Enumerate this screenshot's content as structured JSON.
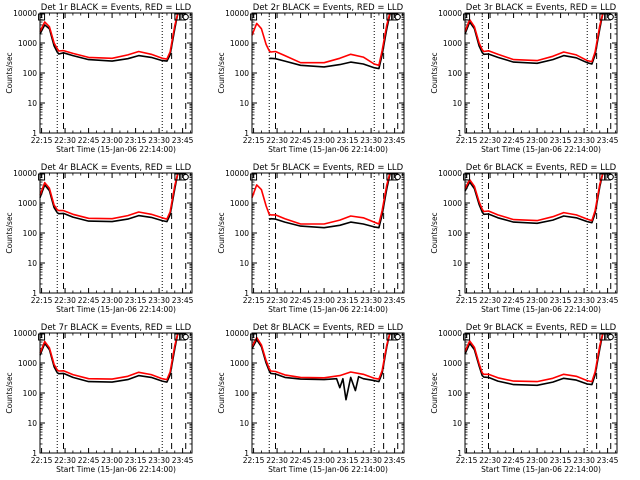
{
  "chart_data": [
    {
      "type": "line",
      "title": "Det 1r BLACK = Events, RED = LLD",
      "xlabel": "Start Time (15-Jan-06 22:14:00)",
      "ylabel": "Counts/sec",
      "x_ticks": [
        "22:15",
        "22:30",
        "22:45",
        "23:00",
        "23:15",
        "23:30",
        "23:45"
      ],
      "y_ticks": [
        "1",
        "10",
        "100",
        "1000",
        "10000"
      ],
      "y_scale": "log",
      "xlim": [
        "22:14",
        "23:51"
      ],
      "ylim": [
        1,
        10000
      ],
      "series": [
        {
          "color": "#000000",
          "x": [
            "22:14",
            "22:17",
            "22:20",
            "22:23",
            "22:25",
            "22:26",
            "22:29",
            "22:35",
            "22:45",
            "23:00",
            "23:10",
            "23:17",
            "23:25",
            "23:32",
            "23:35",
            "23:37",
            "23:40",
            "23:42"
          ],
          "y": [
            2000,
            4000,
            3000,
            800,
            500,
            430,
            470,
            380,
            280,
            250,
            300,
            380,
            330,
            260,
            250,
            400,
            3000,
            10000
          ]
        },
        {
          "color": "#ff0000",
          "x": [
            "22:14",
            "22:17",
            "22:20",
            "22:23",
            "22:25",
            "22:26",
            "22:29",
            "22:35",
            "22:45",
            "23:00",
            "23:10",
            "23:17",
            "23:25",
            "23:32",
            "23:35",
            "23:37",
            "23:40",
            "23:42"
          ],
          "y": [
            2400,
            5000,
            3500,
            1000,
            650,
            540,
            560,
            450,
            330,
            310,
            400,
            520,
            420,
            310,
            290,
            500,
            3800,
            10000
          ]
        }
      ]
    },
    {
      "type": "line",
      "title": "Det 2r BLACK = Events, RED = LLD",
      "xlabel": "Start Time (15-Jan-06 22:14:00)",
      "ylabel": "Counts/sec",
      "x_ticks": [
        "22:15",
        "22:30",
        "22:45",
        "23:00",
        "23:15",
        "23:30",
        "23:45"
      ],
      "y_ticks": [
        "1",
        "10",
        "100",
        "1000",
        "10000"
      ],
      "y_scale": "log",
      "xlim": [
        "22:14",
        "23:51"
      ],
      "ylim": [
        1,
        10000
      ],
      "series": [
        {
          "color": "#000000",
          "x": [
            "22:25",
            "22:26",
            "22:29",
            "22:35",
            "22:45",
            "23:00",
            "23:10",
            "23:17",
            "23:25",
            "23:32",
            "23:35",
            "23:37",
            "23:40",
            "23:42"
          ],
          "y": [
            300,
            310,
            300,
            250,
            180,
            160,
            190,
            230,
            200,
            150,
            140,
            400,
            3000,
            9000
          ]
        },
        {
          "color": "#ff0000",
          "x": [
            "22:14",
            "22:17",
            "22:20",
            "22:23",
            "22:25",
            "22:26",
            "22:29",
            "22:35",
            "22:45",
            "23:00",
            "23:10",
            "23:17",
            "23:25",
            "23:32",
            "23:35",
            "23:37",
            "23:40",
            "23:42"
          ],
          "y": [
            1800,
            4500,
            3000,
            900,
            550,
            500,
            520,
            380,
            220,
            220,
            310,
            420,
            340,
            200,
            180,
            550,
            4000,
            10000
          ]
        }
      ]
    },
    {
      "type": "line",
      "title": "Det 3r BLACK = Events, RED = LLD",
      "xlabel": "Start Time (15-Jan-06 22:14:00)",
      "ylabel": "Counts/sec",
      "x_ticks": [
        "22:15",
        "22:30",
        "22:45",
        "23:00",
        "23:15",
        "23:30",
        "23:45"
      ],
      "y_ticks": [
        "1",
        "10",
        "100",
        "1000",
        "10000"
      ],
      "y_scale": "log",
      "xlim": [
        "22:14",
        "23:51"
      ],
      "ylim": [
        1,
        10000
      ],
      "series": [
        {
          "color": "#000000",
          "x": [
            "22:14",
            "22:17",
            "22:20",
            "22:23",
            "22:25",
            "22:26",
            "22:29",
            "22:35",
            "22:45",
            "23:00",
            "23:10",
            "23:17",
            "23:25",
            "23:32",
            "23:35",
            "23:37",
            "23:40",
            "23:42"
          ],
          "y": [
            2000,
            5000,
            3000,
            800,
            480,
            420,
            430,
            330,
            230,
            210,
            280,
            380,
            320,
            220,
            200,
            400,
            3000,
            10000
          ]
        },
        {
          "color": "#ff0000",
          "x": [
            "22:14",
            "22:17",
            "22:20",
            "22:23",
            "22:25",
            "22:26",
            "22:29",
            "22:35",
            "22:45",
            "23:00",
            "23:10",
            "23:17",
            "23:25",
            "23:32",
            "23:35",
            "23:37",
            "23:40",
            "23:42"
          ],
          "y": [
            2400,
            6000,
            3500,
            1000,
            600,
            520,
            550,
            420,
            280,
            260,
            360,
            500,
            400,
            260,
            240,
            500,
            3800,
            10000
          ]
        }
      ]
    },
    {
      "type": "line",
      "title": "Det 4r BLACK = Events, RED = LLD",
      "xlabel": "Start Time (15-Jan-06 22:14:00)",
      "ylabel": "Counts/sec",
      "x_ticks": [
        "22:15",
        "22:30",
        "22:45",
        "23:00",
        "23:15",
        "23:30",
        "23:45"
      ],
      "y_ticks": [
        "1",
        "10",
        "100",
        "1000",
        "10000"
      ],
      "y_scale": "log",
      "xlim": [
        "22:14",
        "23:51"
      ],
      "ylim": [
        1,
        10000
      ],
      "series": [
        {
          "color": "#000000",
          "x": [
            "22:14",
            "22:17",
            "22:20",
            "22:23",
            "22:25",
            "22:26",
            "22:29",
            "22:35",
            "22:45",
            "23:00",
            "23:10",
            "23:17",
            "23:25",
            "23:32",
            "23:35",
            "23:37",
            "23:40",
            "23:42"
          ],
          "y": [
            1500,
            4000,
            2600,
            700,
            480,
            440,
            450,
            340,
            250,
            240,
            290,
            380,
            330,
            260,
            240,
            400,
            3000,
            10000
          ]
        },
        {
          "color": "#ff0000",
          "x": [
            "22:14",
            "22:17",
            "22:20",
            "22:23",
            "22:25",
            "22:26",
            "22:29",
            "22:35",
            "22:45",
            "23:00",
            "23:10",
            "23:17",
            "23:25",
            "23:32",
            "23:35",
            "23:37",
            "23:40",
            "23:42"
          ],
          "y": [
            1800,
            4800,
            3100,
            850,
            600,
            560,
            560,
            420,
            310,
            300,
            380,
            500,
            420,
            320,
            290,
            500,
            3800,
            10000
          ]
        }
      ]
    },
    {
      "type": "line",
      "title": "Det 5r BLACK = Events, RED = LLD",
      "xlabel": "Start Time (15-Jan-06 22:14:00)",
      "ylabel": "Counts/sec",
      "x_ticks": [
        "22:15",
        "22:30",
        "22:45",
        "23:00",
        "23:15",
        "23:30",
        "23:45"
      ],
      "y_ticks": [
        "1",
        "10",
        "100",
        "1000",
        "10000"
      ],
      "y_scale": "log",
      "xlim": [
        "22:14",
        "23:51"
      ],
      "ylim": [
        1,
        10000
      ],
      "series": [
        {
          "color": "#000000",
          "x": [
            "22:25",
            "22:26",
            "22:29",
            "22:35",
            "22:45",
            "23:00",
            "23:10",
            "23:17",
            "23:25",
            "23:32",
            "23:35",
            "23:37",
            "23:40",
            "23:42"
          ],
          "y": [
            280,
            300,
            290,
            230,
            170,
            150,
            180,
            230,
            200,
            160,
            150,
            400,
            3000,
            9000
          ]
        },
        {
          "color": "#ff0000",
          "x": [
            "22:14",
            "22:17",
            "22:20",
            "22:23",
            "22:25",
            "22:26",
            "22:29",
            "22:35",
            "22:45",
            "23:00",
            "23:10",
            "23:17",
            "23:25",
            "23:32",
            "23:35",
            "23:37",
            "23:40",
            "23:42"
          ],
          "y": [
            1500,
            4000,
            2800,
            800,
            420,
            400,
            400,
            300,
            200,
            200,
            270,
            370,
            320,
            230,
            200,
            550,
            4000,
            10000
          ]
        }
      ]
    },
    {
      "type": "line",
      "title": "Det 6r BLACK = Events, RED = LLD",
      "xlabel": "Start Time (15-Jan-06 22:14:00)",
      "ylabel": "Counts/sec",
      "x_ticks": [
        "22:15",
        "22:30",
        "22:45",
        "23:00",
        "23:15",
        "23:30",
        "23:45"
      ],
      "y_ticks": [
        "1",
        "10",
        "100",
        "1000",
        "10000"
      ],
      "y_scale": "log",
      "xlim": [
        "22:14",
        "23:51"
      ],
      "ylim": [
        1,
        10000
      ],
      "series": [
        {
          "color": "#000000",
          "x": [
            "22:14",
            "22:17",
            "22:20",
            "22:23",
            "22:25",
            "22:26",
            "22:29",
            "22:35",
            "22:45",
            "23:00",
            "23:10",
            "23:17",
            "23:25",
            "23:32",
            "23:35",
            "23:37",
            "23:40",
            "23:42"
          ],
          "y": [
            2500,
            5000,
            3000,
            900,
            500,
            420,
            430,
            320,
            230,
            210,
            270,
            370,
            320,
            240,
            220,
            450,
            3500,
            10000
          ]
        },
        {
          "color": "#ff0000",
          "x": [
            "22:14",
            "22:17",
            "22:20",
            "22:23",
            "22:25",
            "22:26",
            "22:29",
            "22:35",
            "22:45",
            "23:00",
            "23:10",
            "23:17",
            "23:25",
            "23:32",
            "23:35",
            "23:37",
            "23:40",
            "23:42"
          ],
          "y": [
            3000,
            6000,
            3600,
            1100,
            620,
            520,
            540,
            400,
            280,
            260,
            350,
            480,
            400,
            290,
            260,
            550,
            4200,
            10000
          ]
        }
      ]
    },
    {
      "type": "line",
      "title": "Det 7r BLACK = Events, RED = LLD",
      "xlabel": "Start Time (15-Jan-06 22:14:00)",
      "ylabel": "Counts/sec",
      "x_ticks": [
        "22:15",
        "22:30",
        "22:45",
        "23:00",
        "23:15",
        "23:30",
        "23:45"
      ],
      "y_ticks": [
        "1",
        "10",
        "100",
        "1000",
        "10000"
      ],
      "y_scale": "log",
      "xlim": [
        "22:14",
        "23:51"
      ],
      "ylim": [
        1,
        10000
      ],
      "series": [
        {
          "color": "#000000",
          "x": [
            "22:14",
            "22:17",
            "22:20",
            "22:23",
            "22:25",
            "22:26",
            "22:29",
            "22:35",
            "22:45",
            "23:00",
            "23:10",
            "23:17",
            "23:25",
            "23:32",
            "23:35",
            "23:37",
            "23:40",
            "23:42"
          ],
          "y": [
            1800,
            4500,
            2800,
            750,
            480,
            440,
            450,
            330,
            240,
            230,
            280,
            380,
            330,
            250,
            230,
            400,
            3000,
            10000
          ]
        },
        {
          "color": "#ff0000",
          "x": [
            "22:14",
            "22:17",
            "22:20",
            "22:23",
            "22:25",
            "22:26",
            "22:29",
            "22:35",
            "22:45",
            "23:00",
            "23:10",
            "23:17",
            "23:25",
            "23:32",
            "23:35",
            "23:37",
            "23:40",
            "23:42"
          ],
          "y": [
            2100,
            5200,
            3200,
            900,
            590,
            540,
            550,
            410,
            300,
            290,
            360,
            490,
            410,
            300,
            280,
            500,
            3800,
            10000
          ]
        }
      ]
    },
    {
      "type": "line",
      "title": "Det 8r BLACK = Events, RED = LLD",
      "xlabel": "Start Time (15-Jan-06 22:14:00)",
      "ylabel": "Counts/sec",
      "x_ticks": [
        "22:15",
        "22:30",
        "22:45",
        "23:00",
        "23:15",
        "23:30",
        "23:45"
      ],
      "y_ticks": [
        "1",
        "10",
        "100",
        "1000",
        "10000"
      ],
      "y_scale": "log",
      "xlim": [
        "22:14",
        "23:51"
      ],
      "ylim": [
        1,
        10000
      ],
      "series": [
        {
          "color": "#000000",
          "x": [
            "22:14",
            "22:17",
            "22:20",
            "22:23",
            "22:25",
            "22:26",
            "22:29",
            "22:35",
            "22:45",
            "23:00",
            "23:08",
            "23:10",
            "23:12",
            "23:14",
            "23:17",
            "23:20",
            "23:22",
            "23:25",
            "23:32",
            "23:35",
            "23:37",
            "23:40",
            "23:42"
          ],
          "y": [
            3000,
            6000,
            3500,
            1000,
            550,
            450,
            430,
            330,
            290,
            280,
            300,
            150,
            300,
            60,
            330,
            120,
            350,
            300,
            260,
            240,
            450,
            3500,
            10000
          ]
        },
        {
          "color": "#ff0000",
          "x": [
            "22:14",
            "22:17",
            "22:20",
            "22:23",
            "22:25",
            "22:26",
            "22:29",
            "22:35",
            "22:45",
            "23:00",
            "23:10",
            "23:17",
            "23:25",
            "23:32",
            "23:35",
            "23:37",
            "23:40",
            "23:42"
          ],
          "y": [
            3500,
            7000,
            4000,
            1200,
            650,
            540,
            520,
            400,
            330,
            320,
            380,
            500,
            420,
            310,
            290,
            550,
            4000,
            10000
          ]
        }
      ]
    },
    {
      "type": "line",
      "title": "Det 9r BLACK = Events, RED = LLD",
      "xlabel": "Start Time (15-Jan-06 22:14:00)",
      "ylabel": "Counts/sec",
      "x_ticks": [
        "22:15",
        "22:30",
        "22:45",
        "23:00",
        "23:15",
        "23:30",
        "23:45"
      ],
      "y_ticks": [
        "1",
        "10",
        "100",
        "1000",
        "10000"
      ],
      "y_scale": "log",
      "xlim": [
        "22:14",
        "23:51"
      ],
      "ylim": [
        1,
        10000
      ],
      "series": [
        {
          "color": "#000000",
          "x": [
            "22:14",
            "22:17",
            "22:20",
            "22:23",
            "22:25",
            "22:26",
            "22:29",
            "22:35",
            "22:45",
            "23:00",
            "23:10",
            "23:17",
            "23:25",
            "23:32",
            "23:35",
            "23:37",
            "23:40",
            "23:42"
          ],
          "y": [
            2000,
            4500,
            2800,
            800,
            380,
            340,
            330,
            250,
            190,
            180,
            230,
            310,
            270,
            200,
            190,
            400,
            3000,
            10000
          ]
        },
        {
          "color": "#ff0000",
          "x": [
            "22:14",
            "22:17",
            "22:20",
            "22:23",
            "22:25",
            "22:26",
            "22:29",
            "22:35",
            "22:45",
            "23:00",
            "23:10",
            "23:17",
            "23:25",
            "23:32",
            "23:35",
            "23:37",
            "23:40",
            "23:42"
          ],
          "y": [
            2400,
            5400,
            3300,
            950,
            470,
            420,
            420,
            320,
            250,
            240,
            310,
            420,
            360,
            260,
            240,
            500,
            3800,
            10000
          ]
        }
      ]
    }
  ],
  "markers": {
    "dotted_times": [
      "22:25",
      "23:32"
    ],
    "dashed_times": [
      "22:29",
      "23:38",
      "23:47"
    ],
    "box_times": [
      "22:15",
      "23:42",
      "23:45"
    ],
    "circle_time": "23:47"
  }
}
